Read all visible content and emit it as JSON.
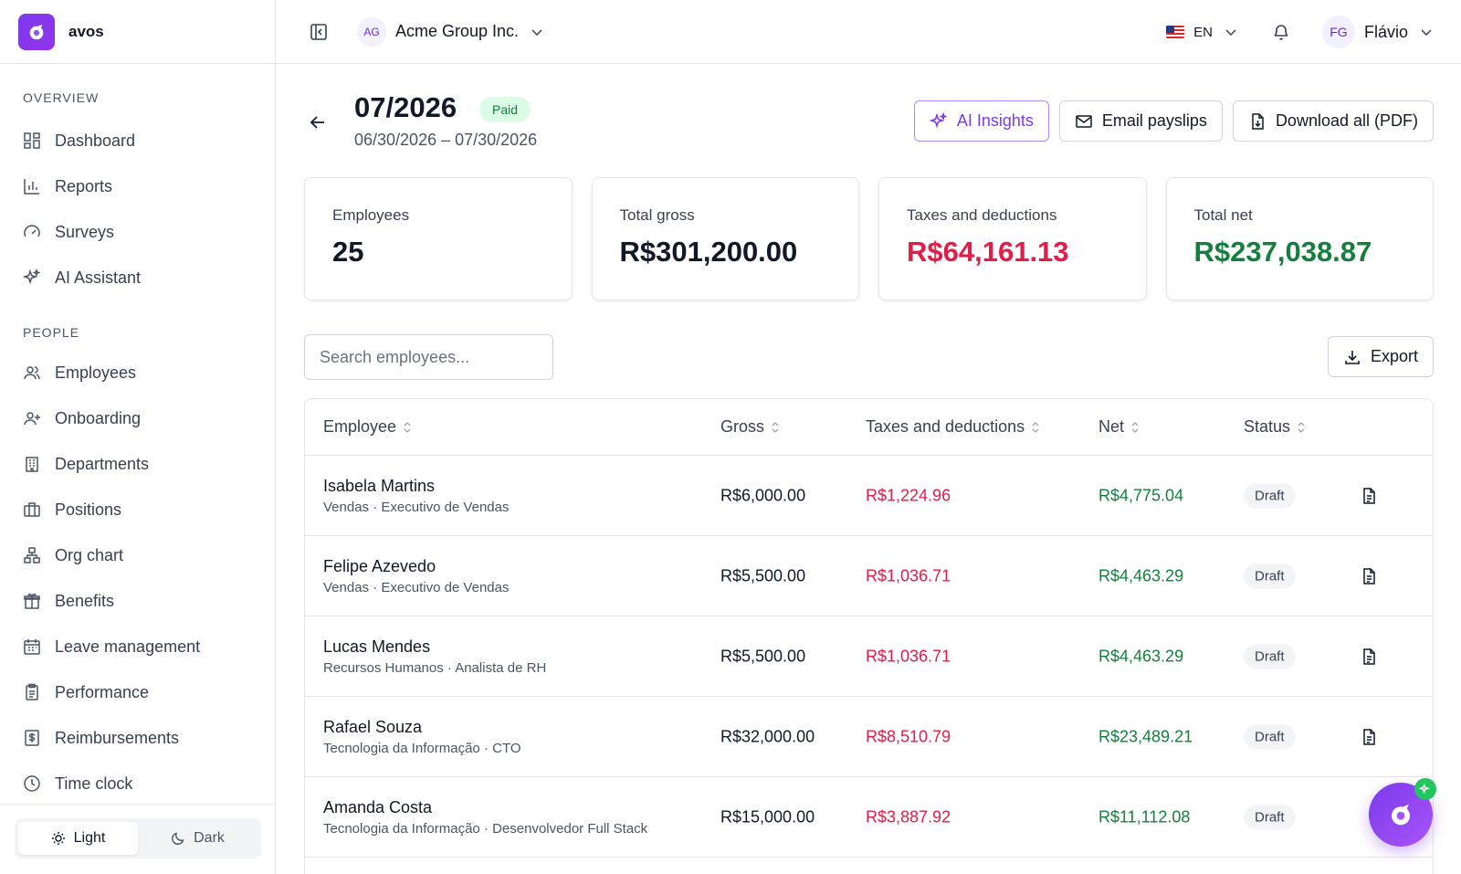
{
  "brand": {
    "name": "avos"
  },
  "sidebar": {
    "overview_label": "OVERVIEW",
    "overview": [
      {
        "label": "Dashboard",
        "icon": "dashboard-icon"
      },
      {
        "label": "Reports",
        "icon": "bar-chart-icon"
      },
      {
        "label": "Surveys",
        "icon": "gauge-icon"
      },
      {
        "label": "AI Assistant",
        "icon": "sparkles-icon"
      }
    ],
    "people_label": "PEOPLE",
    "people": [
      {
        "label": "Employees",
        "icon": "users-icon"
      },
      {
        "label": "Onboarding",
        "icon": "user-plus-icon"
      },
      {
        "label": "Departments",
        "icon": "building-icon"
      },
      {
        "label": "Positions",
        "icon": "briefcase-icon"
      },
      {
        "label": "Org chart",
        "icon": "org-chart-icon"
      },
      {
        "label": "Benefits",
        "icon": "gift-icon"
      },
      {
        "label": "Leave management",
        "icon": "calendar-icon"
      },
      {
        "label": "Performance",
        "icon": "clipboard-icon"
      },
      {
        "label": "Reimbursements",
        "icon": "receipt-icon"
      },
      {
        "label": "Time clock",
        "icon": "clock-icon"
      }
    ],
    "theme": {
      "light": "Light",
      "dark": "Dark",
      "selected": "Light"
    }
  },
  "topbar": {
    "org_initials": "AG",
    "org_name": "Acme Group Inc.",
    "language": "EN",
    "user_initials": "FG",
    "user_name": "Flávio"
  },
  "payroll": {
    "period": "07/2026",
    "status": "Paid",
    "date_range": "06/30/2026 – 07/30/2026",
    "actions": {
      "ai_insights": "AI Insights",
      "email_payslips": "Email payslips",
      "download_all": "Download all (PDF)"
    }
  },
  "summary": [
    {
      "label": "Employees",
      "value": "25",
      "tone": ""
    },
    {
      "label": "Total gross",
      "value": "R$301,200.00",
      "tone": ""
    },
    {
      "label": "Taxes and deductions",
      "value": "R$64,161.13",
      "tone": "red"
    },
    {
      "label": "Total net",
      "value": "R$237,038.87",
      "tone": "green"
    }
  ],
  "search": {
    "placeholder": "Search employees..."
  },
  "export_label": "Export",
  "table": {
    "headers": {
      "employee": "Employee",
      "gross": "Gross",
      "taxes": "Taxes and deductions",
      "net": "Net",
      "status": "Status"
    },
    "rows": [
      {
        "name": "Isabela Martins",
        "sub": "Vendas · Executivo de Vendas",
        "gross": "R$6,000.00",
        "taxes": "R$1,224.96",
        "net": "R$4,775.04",
        "status": "Draft"
      },
      {
        "name": "Felipe Azevedo",
        "sub": "Vendas · Executivo de Vendas",
        "gross": "R$5,500.00",
        "taxes": "R$1,036.71",
        "net": "R$4,463.29",
        "status": "Draft"
      },
      {
        "name": "Lucas Mendes",
        "sub": "Recursos Humanos · Analista de RH",
        "gross": "R$5,500.00",
        "taxes": "R$1,036.71",
        "net": "R$4,463.29",
        "status": "Draft"
      },
      {
        "name": "Rafael Souza",
        "sub": "Tecnologia da Informação · CTO",
        "gross": "R$32,000.00",
        "taxes": "R$8,510.79",
        "net": "R$23,489.21",
        "status": "Draft"
      },
      {
        "name": "Amanda Costa",
        "sub": "Tecnologia da Informação · Desenvolvedor Full Stack",
        "gross": "R$15,000.00",
        "taxes": "R$3,887.92",
        "net": "R$11,112.08",
        "status": "Draft"
      }
    ]
  },
  "colors": {
    "accent": "#7c3aed",
    "negative": "#e11d48",
    "positive": "#15803d"
  }
}
